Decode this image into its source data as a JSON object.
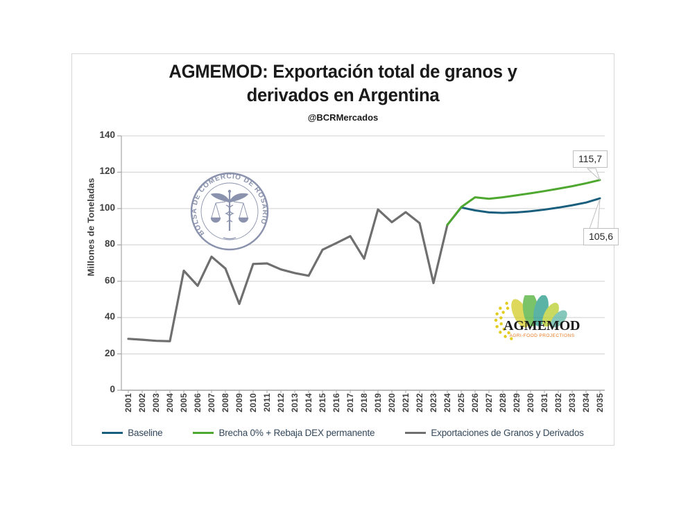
{
  "header": {
    "title_line1": "AGMEMOD: Exportación total de granos y",
    "title_line2": "derivados en Argentina",
    "subtitle": "@BCRMercados"
  },
  "watermarks": {
    "bcr_seal_text": "BOLSA DE COMERCIO DE ROSARIO",
    "agmemod_name": "AGMEMOD",
    "agmemod_tagline": "AGRI-FOOD PROJECTIONS"
  },
  "colors": {
    "baseline_blue": "#1A5E7E",
    "scenario_green": "#4EA72E",
    "history_gray": "#6E6F6E",
    "gridline": "#D9D9D9",
    "axis": "#A6A6A6",
    "seal_blue": "#76809F",
    "logo_orange": "#E87722"
  },
  "chart_data": {
    "type": "line",
    "title": "AGMEMOD: Exportación total de granos y derivados en Argentina",
    "subtitle": "@BCRMercados",
    "xlabel": "",
    "ylabel": "Millones de Toneladas",
    "ylim": [
      0,
      140
    ],
    "y_ticks": [
      0,
      20,
      40,
      60,
      80,
      100,
      120,
      140
    ],
    "grid": true,
    "legend_position": "bottom",
    "years": [
      2001,
      2002,
      2003,
      2004,
      2005,
      2006,
      2007,
      2008,
      2009,
      2010,
      2011,
      2012,
      2013,
      2014,
      2015,
      2016,
      2017,
      2018,
      2019,
      2020,
      2021,
      2022,
      2023,
      2024,
      2025,
      2026,
      2027,
      2028,
      2029,
      2030,
      2031,
      2032,
      2033,
      2034,
      2035
    ],
    "series": [
      {
        "name": "Baseline",
        "color": "#1A5E7E",
        "start_year": 2024,
        "values": [
          91.0,
          100.6,
          99.0,
          97.9,
          97.6,
          97.9,
          98.5,
          99.4,
          100.5,
          101.8,
          103.3,
          105.6
        ],
        "end_label": "105,6"
      },
      {
        "name": "Brecha 0% + Rebaja DEX permanente",
        "color": "#4EA72E",
        "start_year": 2024,
        "values": [
          91.0,
          100.8,
          106.2,
          105.4,
          106.2,
          107.3,
          108.4,
          109.6,
          110.9,
          112.3,
          113.9,
          115.7
        ],
        "end_label": "115,7"
      },
      {
        "name": "Exportaciones de Granos y Derivados",
        "color": "#6E6F6E",
        "start_year": 2001,
        "values": [
          28.3,
          27.8,
          27.2,
          27.0,
          65.8,
          57.5,
          73.5,
          67.0,
          47.5,
          69.5,
          69.8,
          66.5,
          64.5,
          63.0,
          77.3,
          81.0,
          84.8,
          72.4,
          99.5,
          92.5,
          98.0,
          92.0,
          59.0,
          91.0
        ]
      }
    ]
  }
}
